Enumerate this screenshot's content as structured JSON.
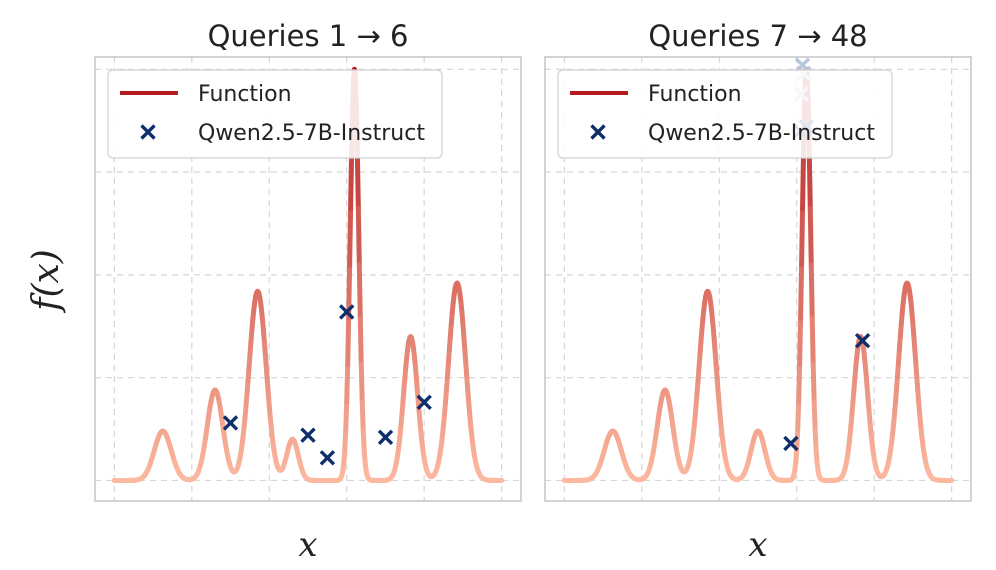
{
  "ylabel": "f(x)",
  "xlabel": "x",
  "colors": {
    "function_low": "#fcb9a0",
    "function_high": "#b41a1e",
    "marker": "#0f2f6b",
    "marker_faded": "#b8c6dc"
  },
  "chart_data": [
    {
      "type": "line",
      "title": "Queries 1 → 6",
      "xlabel": "x",
      "ylabel": "f(x)",
      "xlim": [
        -0.05,
        1.05
      ],
      "ylim": [
        -0.05,
        1.03
      ],
      "grid": true,
      "legend": {
        "position": "top-left",
        "entries": [
          {
            "label": "Function",
            "kind": "line"
          },
          {
            "label": "Qwen2.5-7B-Instruct",
            "kind": "marker"
          }
        ]
      },
      "series": [
        {
          "name": "Function",
          "peaks": [
            {
              "center": 0.125,
              "height": 0.12,
              "width": 0.022
            },
            {
              "center": 0.26,
              "height": 0.22,
              "width": 0.02
            },
            {
              "center": 0.37,
              "height": 0.46,
              "width": 0.022
            },
            {
              "center": 0.46,
              "height": 0.1,
              "width": 0.015
            },
            {
              "center": 0.62,
              "height": 1.0,
              "width": 0.011
            },
            {
              "center": 0.765,
              "height": 0.35,
              "width": 0.018
            },
            {
              "center": 0.885,
              "height": 0.48,
              "width": 0.022
            }
          ]
        },
        {
          "name": "Qwen2.5-7B-Instruct",
          "points": [
            {
              "x": 0.3,
              "y": 0.14
            },
            {
              "x": 0.5,
              "y": 0.11
            },
            {
              "x": 0.55,
              "y": 0.055
            },
            {
              "x": 0.6,
              "y": 0.41
            },
            {
              "x": 0.7,
              "y": 0.105
            },
            {
              "x": 0.8,
              "y": 0.19
            }
          ]
        }
      ]
    },
    {
      "type": "line",
      "title": "Queries 7 → 48",
      "xlabel": "x",
      "ylabel": "f(x)",
      "xlim": [
        -0.05,
        1.05
      ],
      "ylim": [
        -0.05,
        1.03
      ],
      "grid": true,
      "legend": {
        "position": "top-left",
        "entries": [
          {
            "label": "Function",
            "kind": "line"
          },
          {
            "label": "Qwen2.5-7B-Instruct",
            "kind": "marker"
          }
        ]
      },
      "series": [
        {
          "name": "Function",
          "peaks": [
            {
              "center": 0.125,
              "height": 0.12,
              "width": 0.022
            },
            {
              "center": 0.26,
              "height": 0.22,
              "width": 0.02
            },
            {
              "center": 0.37,
              "height": 0.46,
              "width": 0.022
            },
            {
              "center": 0.5,
              "height": 0.12,
              "width": 0.018
            },
            {
              "center": 0.625,
              "height": 1.0,
              "width": 0.011
            },
            {
              "center": 0.765,
              "height": 0.35,
              "width": 0.018
            },
            {
              "center": 0.885,
              "height": 0.48,
              "width": 0.022
            }
          ]
        },
        {
          "name": "Qwen2.5-7B-Instruct",
          "points": [
            {
              "x": 0.585,
              "y": 0.09
            },
            {
              "x": 0.61,
              "y": 0.85
            },
            {
              "x": 0.625,
              "y": 0.86
            },
            {
              "x": 0.77,
              "y": 0.34
            },
            {
              "x": 0.615,
              "y": 1.01,
              "faded": true
            },
            {
              "x": 0.618,
              "y": 0.99,
              "faded": true
            },
            {
              "x": 0.612,
              "y": 0.94,
              "faded": true
            }
          ]
        }
      ]
    }
  ]
}
